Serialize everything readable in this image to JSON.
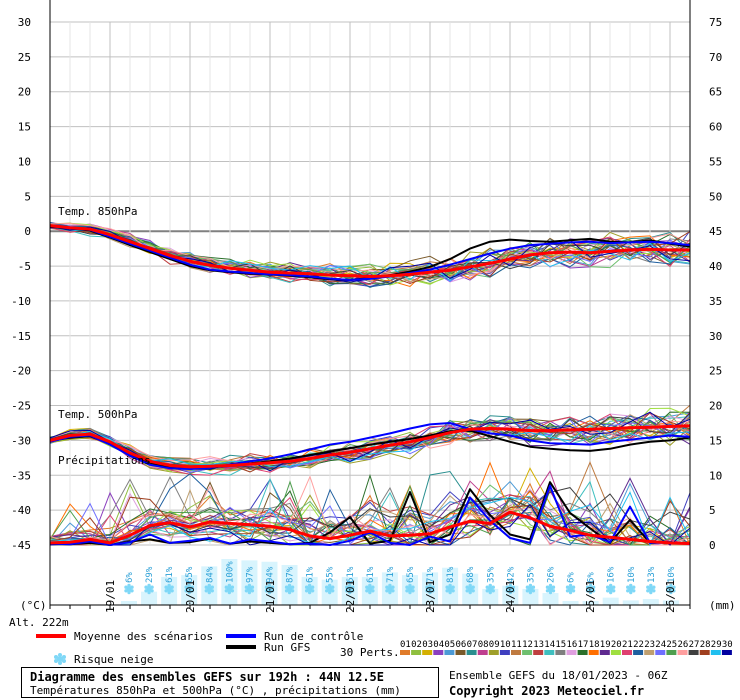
{
  "labels": {
    "temp850": "Temp. 850hPa",
    "temp500": "Temp. 500hPa",
    "precip": "Précipitations",
    "unit_left": "(°C)",
    "unit_right": "(mm)",
    "altitude": "Alt. 222m"
  },
  "legend": {
    "mean": "Moyenne des scénarios",
    "control": "Run de contrôle",
    "gfs": "Run GFS",
    "snow": "Risque neige",
    "perts": "30 Perts.",
    "members": [
      "01",
      "02",
      "03",
      "04",
      "05",
      "06",
      "07",
      "08",
      "09",
      "10",
      "11",
      "12",
      "13",
      "14",
      "15",
      "16",
      "17",
      "18",
      "19",
      "20",
      "21",
      "22",
      "23",
      "24",
      "25",
      "26",
      "27",
      "28",
      "29",
      "30"
    ],
    "member_colors": [
      "#e07b2a",
      "#8fbf3f",
      "#d4b000",
      "#8b3fbf",
      "#4c9ad6",
      "#7a5a2a",
      "#2a8f8f",
      "#bf3f8f",
      "#9f9f2a",
      "#3f3fbf",
      "#bf7a3f",
      "#6fbf6f",
      "#bf3f3f",
      "#3fbfbf",
      "#7f7f7f",
      "#df9fdf",
      "#2a6f2a",
      "#ff6f00",
      "#5f2a8f",
      "#9fdf3f",
      "#df3f6f",
      "#1f5f9f",
      "#bf9f6f",
      "#6f6fff",
      "#4f9f4f",
      "#ff9f9f",
      "#3f3f3f",
      "#9f3f1f",
      "#1fbfef",
      "#0000a0"
    ]
  },
  "title_box": {
    "line1": "Diagramme des ensembles GEFS sur 192h : 44N 12.5E",
    "line2": "Températures 850hPa et 500hPa (°C) , précipitations (mm)"
  },
  "footer": {
    "run": "Ensemble GEFS du 18/01/2023 - 06Z",
    "copyright": "Copyright 2023 Meteociel.fr"
  },
  "colors": {
    "mean": "#ff0000",
    "control": "#0000ff",
    "gfs": "#000000",
    "grid": "#c0c0c0",
    "snow": "#7fd8f7"
  },
  "chart_data": {
    "type": "line",
    "x_dates": [
      "19/01",
      "20/01",
      "21/01",
      "22/01",
      "23/01",
      "24/01",
      "25/01",
      "26/01"
    ],
    "x_range_hours": [
      0,
      192
    ],
    "y_left": {
      "unit": "°C",
      "ylim": [
        -45,
        30
      ],
      "ticks": [
        30,
        25,
        20,
        15,
        10,
        5,
        0,
        -5,
        -10,
        -15,
        -20,
        -25,
        -30,
        -35,
        -40,
        -45
      ]
    },
    "y_right": {
      "unit": "mm",
      "ylim": [
        0,
        75
      ],
      "ticks": [
        75,
        70,
        65,
        60,
        55,
        50,
        45,
        40,
        35,
        30,
        25,
        20,
        15,
        10,
        5,
        0
      ]
    },
    "hours": [
      0,
      6,
      12,
      18,
      24,
      30,
      36,
      42,
      48,
      54,
      60,
      66,
      72,
      78,
      84,
      90,
      96,
      102,
      108,
      114,
      120,
      126,
      132,
      138,
      144,
      150,
      156,
      162,
      168,
      174,
      180,
      186,
      192
    ],
    "series": [
      {
        "name": "Moyenne des scénarios",
        "group": "t850",
        "values": [
          0.8,
          0.5,
          0.3,
          -0.5,
          -1.5,
          -2.5,
          -3.5,
          -4.3,
          -4.9,
          -5.3,
          -5.6,
          -5.9,
          -6.0,
          -6.1,
          -6.3,
          -6.4,
          -6.5,
          -6.4,
          -6.2,
          -5.9,
          -5.6,
          -5.1,
          -4.6,
          -4.0,
          -3.4,
          -3.1,
          -3.0,
          -3.1,
          -2.9,
          -2.7,
          -2.6,
          -2.7,
          -2.7
        ]
      },
      {
        "name": "Run de contrôle",
        "group": "t850",
        "values": [
          0.7,
          0.4,
          0.2,
          -0.8,
          -1.8,
          -2.8,
          -3.8,
          -4.8,
          -5.5,
          -5.8,
          -6.0,
          -6.2,
          -6.3,
          -6.5,
          -6.8,
          -7.0,
          -6.8,
          -6.5,
          -6.0,
          -5.5,
          -4.8,
          -4.0,
          -3.2,
          -2.5,
          -2.0,
          -1.8,
          -1.6,
          -1.5,
          -1.7,
          -1.6,
          -1.5,
          -1.7,
          -2.0
        ]
      },
      {
        "name": "Run GFS",
        "group": "t850",
        "values": [
          0.6,
          0.4,
          0.1,
          -0.9,
          -2.0,
          -3.0,
          -4.0,
          -5.0,
          -5.6,
          -5.9,
          -6.1,
          -6.2,
          -6.4,
          -6.6,
          -6.9,
          -7.0,
          -6.7,
          -6.3,
          -5.8,
          -5.1,
          -4.0,
          -2.5,
          -1.5,
          -1.2,
          -1.4,
          -1.5,
          -1.3,
          -1.1,
          -1.5,
          -1.6,
          -1.3,
          -1.8,
          -2.2
        ]
      },
      {
        "name": "Moyenne des scénarios",
        "group": "t500",
        "values": [
          -30.0,
          -29.3,
          -29.1,
          -30.2,
          -31.8,
          -33.0,
          -33.6,
          -33.8,
          -33.7,
          -33.6,
          -33.4,
          -33.2,
          -33.0,
          -32.6,
          -32.1,
          -31.7,
          -31.2,
          -30.7,
          -30.2,
          -29.6,
          -28.9,
          -28.4,
          -28.3,
          -28.4,
          -28.6,
          -28.6,
          -28.5,
          -28.4,
          -28.3,
          -28.2,
          -28.1,
          -28.0,
          -27.9
        ]
      },
      {
        "name": "Run de contrôle",
        "group": "t500",
        "values": [
          -30.2,
          -29.5,
          -29.3,
          -30.6,
          -32.2,
          -33.5,
          -34.0,
          -34.1,
          -33.9,
          -33.5,
          -33.0,
          -32.6,
          -32.0,
          -31.3,
          -30.6,
          -30.2,
          -29.6,
          -29.0,
          -28.3,
          -27.7,
          -27.5,
          -28.4,
          -29.0,
          -29.3,
          -30.0,
          -30.4,
          -30.5,
          -30.6,
          -30.2,
          -29.9,
          -29.6,
          -29.3,
          -29.5
        ]
      },
      {
        "name": "Run GFS",
        "group": "t500",
        "values": [
          -30.1,
          -29.6,
          -29.4,
          -30.5,
          -32.0,
          -33.2,
          -33.8,
          -34.0,
          -33.9,
          -33.6,
          -33.3,
          -33.0,
          -32.6,
          -32.1,
          -31.6,
          -31.1,
          -30.6,
          -30.2,
          -29.8,
          -29.3,
          -28.7,
          -28.6,
          -29.4,
          -30.2,
          -30.9,
          -31.2,
          -31.4,
          -31.5,
          -31.2,
          -30.6,
          -30.2,
          -30.0,
          -29.6
        ]
      },
      {
        "name": "Moyenne des scénarios",
        "group": "precip",
        "values": [
          0.3,
          0.4,
          0.8,
          0.3,
          1.4,
          2.8,
          3.2,
          2.6,
          3.3,
          3.1,
          2.9,
          2.7,
          2.2,
          1.3,
          0.9,
          1.4,
          2.0,
          1.3,
          1.4,
          1.6,
          2.6,
          3.4,
          3.1,
          4.7,
          3.9,
          2.7,
          2.1,
          1.4,
          1.1,
          0.8,
          0.5,
          0.3,
          0.2
        ]
      },
      {
        "name": "Run de contrôle",
        "group": "precip",
        "values": [
          0.2,
          0.1,
          0.5,
          0.0,
          0.4,
          1.5,
          0.3,
          0.6,
          1.0,
          0.2,
          0.8,
          0.5,
          0.1,
          0.2,
          0.0,
          0.6,
          1.8,
          0.3,
          0.0,
          1.2,
          0.5,
          6.8,
          3.5,
          1.0,
          0.3,
          8.5,
          1.2,
          1.5,
          0.4,
          5.5,
          0.3,
          0.4,
          0.2
        ]
      },
      {
        "name": "Run GFS",
        "group": "precip",
        "values": [
          0.2,
          0.1,
          0.3,
          0.0,
          0.5,
          0.8,
          0.3,
          0.4,
          0.9,
          0.2,
          0.5,
          0.3,
          0.1,
          0.3,
          1.8,
          4.0,
          0.2,
          0.6,
          7.6,
          0.4,
          1.5,
          8.0,
          4.3,
          1.5,
          0.8,
          9.0,
          4.6,
          2.4,
          0.3,
          3.6,
          0.3,
          0.4,
          0.2
        ]
      }
    ],
    "snow_risk_percent": [
      "6%",
      "29%",
      "61%",
      "65%",
      "84%",
      "100%",
      "97%",
      "94%",
      "87%",
      "61%",
      "55%",
      "61%",
      "61%",
      "71%",
      "65%",
      "71%",
      "81%",
      "68%",
      "35%",
      "42%",
      "35%",
      "26%",
      "6%",
      "6%",
      "16%",
      "10%",
      "13%",
      "10%"
    ]
  }
}
